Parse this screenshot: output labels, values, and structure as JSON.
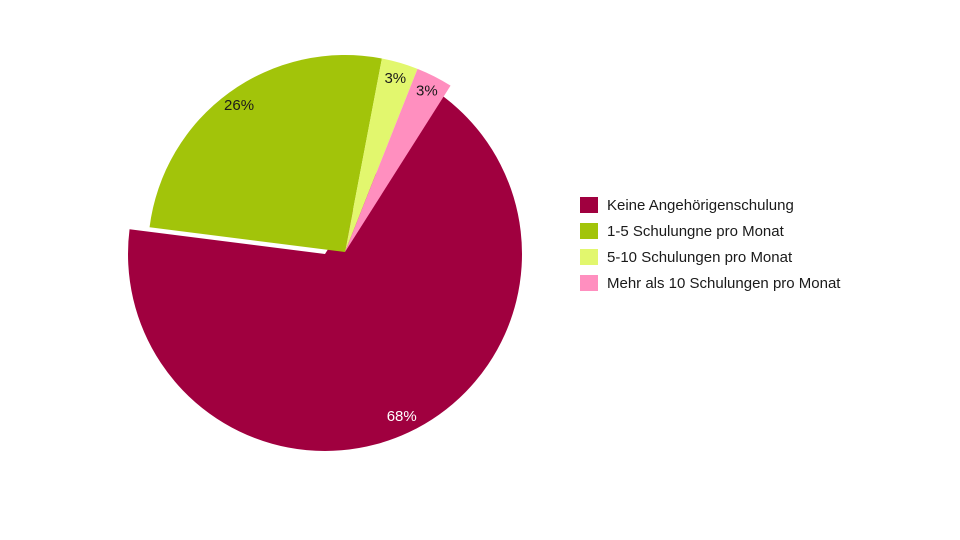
{
  "chart_data": {
    "type": "pie",
    "categories": [
      "Keine Angehörigenschulung",
      "1-5 Schulungne pro Monat",
      "5-10 Schulungen pro Monat",
      "Mehr als 10 Schulungen pro Monat"
    ],
    "values": [
      68,
      26,
      3,
      3
    ],
    "value_labels": [
      "68%",
      "26%",
      "3%",
      "3%"
    ],
    "colors": [
      "#a0003f",
      "#a2c40a",
      "#e2f76e",
      "#ff8fbf"
    ],
    "legend": "right"
  }
}
